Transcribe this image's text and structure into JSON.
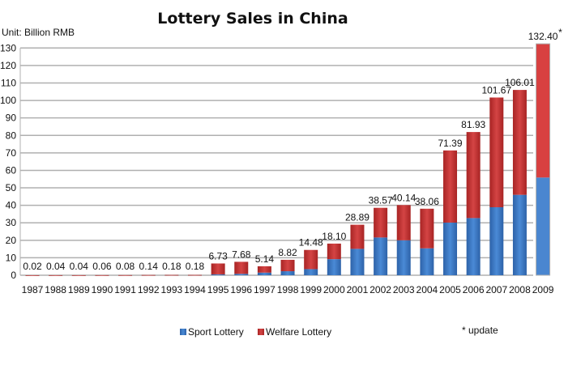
{
  "chart_data": {
    "type": "bar",
    "stacked": true,
    "title": "Lottery Sales in China",
    "unit_label": "Unit: Billion RMB",
    "ylim": [
      0,
      130
    ],
    "yticks": [
      0,
      10,
      20,
      30,
      40,
      50,
      60,
      70,
      80,
      90,
      100,
      110,
      120,
      130
    ],
    "grid": true,
    "legend_placement": "bottom",
    "footnote": "* update",
    "categories": [
      "1987",
      "1988",
      "1989",
      "1990",
      "1991",
      "1992",
      "1993",
      "1994",
      "1995",
      "1996",
      "1997",
      "1998",
      "1999",
      "2000",
      "2001",
      "2002",
      "2003",
      "2004",
      "2005",
      "2006",
      "2007",
      "2008",
      "2009"
    ],
    "total_labels": [
      "0.02",
      "0.04",
      "0.04",
      "0.06",
      "0.08",
      "0.14",
      "0.18",
      "0.18",
      "6.73",
      "7.68",
      "5.14",
      "8.82",
      "14.48",
      "18.10",
      "28.89",
      "38.57",
      "40.14",
      "38.06",
      "71.39",
      "81.93",
      "101.67",
      "106.01",
      "132.40"
    ],
    "total_label_marks": [
      "",
      "",
      "",
      "",
      "",
      "",
      "",
      "",
      "",
      "",
      "",
      "",
      "",
      "",
      "",
      "",
      "",
      "",
      "",
      "",
      "",
      "",
      "*"
    ],
    "series": [
      {
        "name": "Sport Lottery",
        "color": "#3a78c8",
        "values": [
          0,
          0,
          0,
          0,
          0,
          0,
          0,
          0,
          0.5,
          0.8,
          1.5,
          2.3,
          3.5,
          9.2,
          15.1,
          21.6,
          20.0,
          15.4,
          30.1,
          32.7,
          38.9,
          46.0,
          55.9
        ]
      },
      {
        "name": "Welfare Lottery",
        "color": "#c83434",
        "values": [
          0.02,
          0.04,
          0.04,
          0.06,
          0.08,
          0.14,
          0.18,
          0.18,
          6.23,
          6.88,
          3.64,
          6.52,
          10.98,
          8.9,
          13.79,
          16.97,
          20.14,
          22.66,
          41.29,
          49.23,
          62.77,
          60.01,
          76.5
        ]
      }
    ]
  }
}
